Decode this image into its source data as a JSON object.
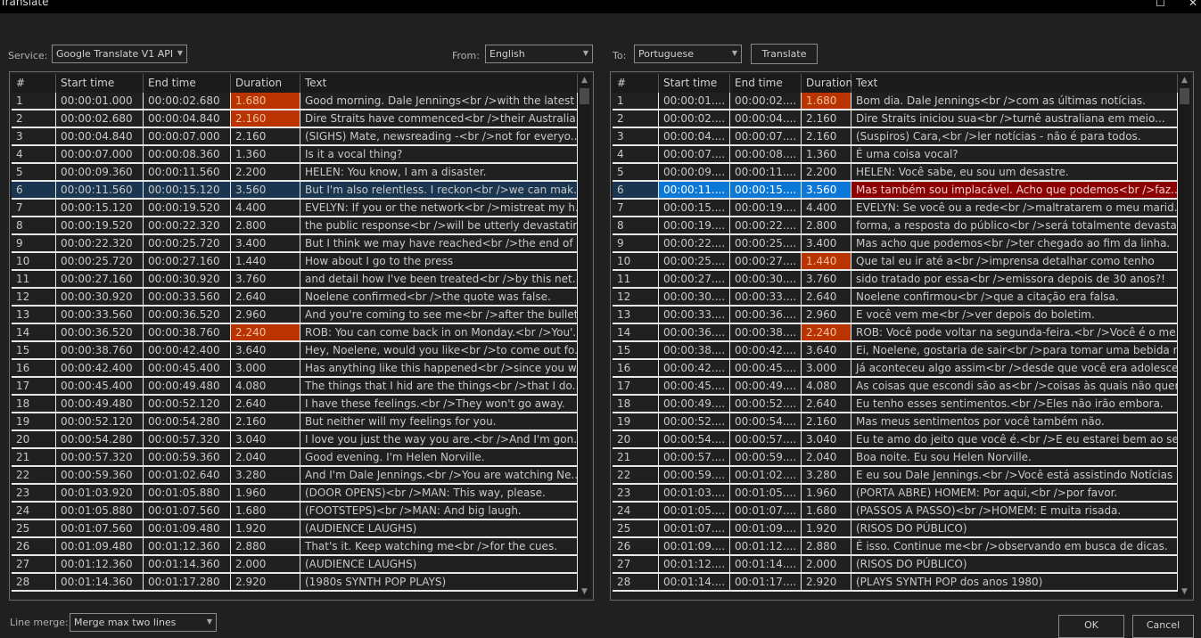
{
  "window": {
    "title": "Translate",
    "maximize": "☐",
    "close": "✕"
  },
  "toolbar": {
    "service_label": "Service:",
    "service_value": "Google Translate V1 API",
    "from_label": "From:",
    "from_value": "English",
    "to_label": "To:",
    "to_value": "Portuguese",
    "translate_button": "Translate"
  },
  "columns": [
    "#",
    "Start time",
    "End time",
    "Duration",
    "Text"
  ],
  "colors": {
    "warning": "#b93400",
    "selected_row": "#1a3550",
    "selected_cell": "#0a78d7",
    "selected_text": "#8b0000"
  },
  "source": {
    "selected_row": 6,
    "warning_durations": [
      1,
      2,
      14
    ],
    "rows": [
      [
        "1",
        "00:00:01.000",
        "00:00:02.680",
        "1.680",
        "Good morning. Dale Jennings<br />with the latest ..."
      ],
      [
        "2",
        "00:00:02.680",
        "00:00:04.840",
        "2.160",
        "Dire Straits have commenced<br />their Australia..."
      ],
      [
        "3",
        "00:00:04.840",
        "00:00:07.000",
        "2.160",
        "(SIGHS) Mate, newsreading -<br />not for everyo..."
      ],
      [
        "4",
        "00:00:07.000",
        "00:00:08.360",
        "1.360",
        "Is it a vocal thing?"
      ],
      [
        "5",
        "00:00:09.360",
        "00:00:11.560",
        "2.200",
        "HELEN: You know, I am a disaster."
      ],
      [
        "6",
        "00:00:11.560",
        "00:00:15.120",
        "3.560",
        "But I'm also relentless. I reckon<br />we can mak..."
      ],
      [
        "7",
        "00:00:15.120",
        "00:00:19.520",
        "4.400",
        "EVELYN: If you or the network<br />mistreat my h..."
      ],
      [
        "8",
        "00:00:19.520",
        "00:00:22.320",
        "2.800",
        "the public response<br />will be utterly devastating."
      ],
      [
        "9",
        "00:00:22.320",
        "00:00:25.720",
        "3.400",
        "But I think we may have reached<br />the end of ..."
      ],
      [
        "10",
        "00:00:25.720",
        "00:00:27.160",
        "1.440",
        "How about I go to the press"
      ],
      [
        "11",
        "00:00:27.160",
        "00:00:30.920",
        "3.760",
        "and detail how I've been treated<br />by this net..."
      ],
      [
        "12",
        "00:00:30.920",
        "00:00:33.560",
        "2.640",
        "Noelene confirmed<br />the quote was false."
      ],
      [
        "13",
        "00:00:33.560",
        "00:00:36.520",
        "2.960",
        "And you're coming to see me<br />after the bullet..."
      ],
      [
        "14",
        "00:00:36.520",
        "00:00:38.760",
        "2.240",
        "ROB: You can come back in on Monday.<br />You'..."
      ],
      [
        "15",
        "00:00:38.760",
        "00:00:42.400",
        "3.640",
        "Hey, Noelene, would you like<br />to come out fo..."
      ],
      [
        "16",
        "00:00:42.400",
        "00:00:45.400",
        "3.000",
        "Has anything like this happened<br />since you w..."
      ],
      [
        "17",
        "00:00:45.400",
        "00:00:49.480",
        "4.080",
        "The things that I hid are the things<br />that I do..."
      ],
      [
        "18",
        "00:00:49.480",
        "00:00:52.120",
        "2.640",
        "I have these feelings.<br />They won't go away."
      ],
      [
        "19",
        "00:00:52.120",
        "00:00:54.280",
        "2.160",
        "But neither will my feelings for you."
      ],
      [
        "20",
        "00:00:54.280",
        "00:00:57.320",
        "3.040",
        "I love you just the way you are.<br />And I'm gon..."
      ],
      [
        "21",
        "00:00:57.320",
        "00:00:59.360",
        "2.040",
        "Good evening. I'm Helen Norville."
      ],
      [
        "22",
        "00:00:59.360",
        "00:01:02.640",
        "3.280",
        "And I'm Dale Jennings.<br />You are watching Ne..."
      ],
      [
        "23",
        "00:01:03.920",
        "00:01:05.880",
        "1.960",
        "(DOOR OPENS)<br />MAN: This way, please."
      ],
      [
        "24",
        "00:01:05.880",
        "00:01:07.560",
        "1.680",
        "(FOOTSTEPS)<br />MAN: And big laugh."
      ],
      [
        "25",
        "00:01:07.560",
        "00:01:09.480",
        "1.920",
        "(AUDIENCE LAUGHS)"
      ],
      [
        "26",
        "00:01:09.480",
        "00:01:12.360",
        "2.880",
        "That's it. Keep watching me<br />for the cues."
      ],
      [
        "27",
        "00:01:12.360",
        "00:01:14.360",
        "2.000",
        "(AUDIENCE LAUGHS)"
      ],
      [
        "28",
        "00:01:14.360",
        "00:01:17.280",
        "2.920",
        "(1980s SYNTH POP PLAYS)"
      ]
    ]
  },
  "target": {
    "selected_row": 6,
    "warning_durations": [
      1,
      10,
      14
    ],
    "rows": [
      [
        "1",
        "00:00:01....",
        "00:00:02....",
        "1.680",
        "Bom dia. Dale Jennings<br />com as últimas notícias."
      ],
      [
        "2",
        "00:00:02....",
        "00:00:04....",
        "2.160",
        "Dire Straits iniciou sua<br />turnê australiana em meio..."
      ],
      [
        "3",
        "00:00:04....",
        "00:00:07....",
        "2.160",
        "(Suspiros) Cara,<br />ler notícias - não é para todos."
      ],
      [
        "4",
        "00:00:07....",
        "00:00:08....",
        "1.360",
        "É uma coisa vocal?"
      ],
      [
        "5",
        "00:00:09....",
        "00:00:11....",
        "2.200",
        "HELEN: Você sabe, eu sou um desastre."
      ],
      [
        "6",
        "00:00:11....",
        "00:00:15....",
        "3.560",
        "Mas também sou implacável.  Acho que podemos<br />faz..."
      ],
      [
        "7",
        "00:00:15....",
        "00:00:19....",
        "4.400",
        "EVELYN: Se você ou a rede<br />maltratarem o meu marid..."
      ],
      [
        "8",
        "00:00:19....",
        "00:00:22....",
        "2.800",
        "forma, a resposta do público<br />será totalmente devasta..."
      ],
      [
        "9",
        "00:00:22....",
        "00:00:25....",
        "3.400",
        "Mas acho que podemos<br />ter chegado ao fim da linha."
      ],
      [
        "10",
        "00:00:25....",
        "00:00:27....",
        "1.440",
        "Que tal eu ir até a<br />imprensa detalhar como tenho"
      ],
      [
        "11",
        "00:00:27....",
        "00:00:30....",
        "3.760",
        "sido tratado por essa<br />emissora depois de 30 anos?!"
      ],
      [
        "12",
        "00:00:30....",
        "00:00:33....",
        "2.640",
        "Noelene confirmou<br />que a citação era falsa."
      ],
      [
        "13",
        "00:00:33....",
        "00:00:36....",
        "2.960",
        "E você vem me<br />ver depois do boletim."
      ],
      [
        "14",
        "00:00:36....",
        "00:00:38....",
        "2.240",
        "ROB: Você pode voltar na segunda-feira.<br />Você é o me..."
      ],
      [
        "15",
        "00:00:38....",
        "00:00:42....",
        "3.640",
        "Ei, Noelene, gostaria de sair<br />para tomar uma bebida n..."
      ],
      [
        "16",
        "00:00:42....",
        "00:00:45....",
        "3.000",
        "Já aconteceu algo assim<br />desde que você era adolesce..."
      ],
      [
        "17",
        "00:00:45....",
        "00:00:49....",
        "4.080",
        "As coisas que escondi são as<br />coisas às quais não quer..."
      ],
      [
        "18",
        "00:00:49....",
        "00:00:52....",
        "2.640",
        "Eu tenho esses sentimentos.<br />Eles não irão embora."
      ],
      [
        "19",
        "00:00:52....",
        "00:00:54....",
        "2.160",
        "Mas meus sentimentos por você também não."
      ],
      [
        "20",
        "00:00:54....",
        "00:00:57....",
        "3.040",
        "Eu te amo do jeito que você é.<br />E eu estarei bem ao se..."
      ],
      [
        "21",
        "00:00:57....",
        "00:00:59....",
        "2.040",
        "Boa noite.  Eu sou Helen Norville."
      ],
      [
        "22",
        "00:00:59....",
        "00:01:02....",
        "3.280",
        "E eu sou Dale Jennings.<br />Você está assistindo Notícias ..."
      ],
      [
        "23",
        "00:01:03....",
        "00:01:05....",
        "1.960",
        "(PORTA ABRE) HOMEM: Por aqui,<br />por favor."
      ],
      [
        "24",
        "00:01:05....",
        "00:01:07....",
        "1.680",
        "(PASSOS A PASSO)<br />HOMEM: E muita risada."
      ],
      [
        "25",
        "00:01:07....",
        "00:01:09....",
        "1.920",
        "(RISOS DO PÚBLICO)"
      ],
      [
        "26",
        "00:01:09....",
        "00:01:12....",
        "2.880",
        "É isso. Continue me<br />observando em busca de dicas."
      ],
      [
        "27",
        "00:01:12....",
        "00:01:14....",
        "2.000",
        "(RISOS DO PÚBLICO)"
      ],
      [
        "28",
        "00:01:14....",
        "00:01:17....",
        "2.920",
        "(PLAYS SYNTH POP dos anos 1980)"
      ]
    ]
  },
  "footer": {
    "line_merge_label": "Line merge:",
    "line_merge_value": "Merge max two lines",
    "ok": "OK",
    "cancel": "Cancel"
  }
}
